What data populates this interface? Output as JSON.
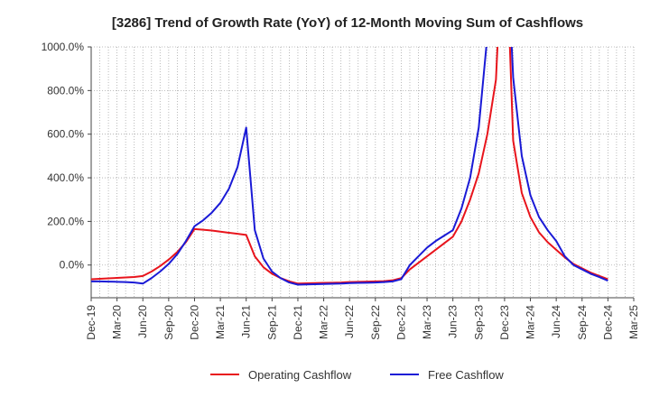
{
  "chart_data": {
    "type": "line",
    "title": "[3286]  Trend of Growth Rate (YoY) of 12-Month Moving Sum of Cashflows",
    "xlabel": "",
    "ylabel": "",
    "ylim": [
      -150,
      1000
    ],
    "y_ticks": [
      0,
      200,
      400,
      600,
      800,
      1000
    ],
    "y_tick_labels": [
      "0.0%",
      "200.0%",
      "400.0%",
      "600.0%",
      "800.0%",
      "1000.0%"
    ],
    "x_tick_labels": [
      "Dec-19",
      "Mar-20",
      "Jun-20",
      "Sep-20",
      "Dec-20",
      "Mar-21",
      "Jun-21",
      "Sep-21",
      "Dec-21",
      "Mar-22",
      "Jun-22",
      "Sep-22",
      "Dec-22",
      "Mar-23",
      "Jun-23",
      "Sep-23",
      "Dec-23",
      "Mar-24",
      "Jun-24",
      "Sep-24",
      "Dec-24",
      "Mar-25"
    ],
    "grid": true,
    "legend_position": "bottom",
    "x": [
      "Dec-19",
      "Jan-20",
      "Feb-20",
      "Mar-20",
      "Apr-20",
      "May-20",
      "Jun-20",
      "Jul-20",
      "Aug-20",
      "Sep-20",
      "Oct-20",
      "Nov-20",
      "Dec-20",
      "Jan-21",
      "Feb-21",
      "Mar-21",
      "Apr-21",
      "May-21",
      "Jun-21",
      "Jul-21",
      "Aug-21",
      "Sep-21",
      "Oct-21",
      "Nov-21",
      "Dec-21",
      "Jan-22",
      "Feb-22",
      "Mar-22",
      "Apr-22",
      "May-22",
      "Jun-22",
      "Jul-22",
      "Aug-22",
      "Sep-22",
      "Oct-22",
      "Nov-22",
      "Dec-22",
      "Jan-23",
      "Feb-23",
      "Mar-23",
      "Apr-23",
      "May-23",
      "Jun-23",
      "Jul-23",
      "Aug-23",
      "Sep-23",
      "Oct-23",
      "Nov-23",
      "Dec-23",
      "Jan-24",
      "Feb-24",
      "Mar-24",
      "Apr-24",
      "May-24",
      "Jun-24",
      "Jul-24",
      "Aug-24",
      "Sep-24",
      "Oct-24",
      "Nov-24",
      "Dec-24"
    ],
    "series": [
      {
        "name": "Operating Cashflow",
        "color": "#e8141c",
        "values": [
          -65,
          -63,
          -61,
          -59,
          -57,
          -55,
          -50,
          -30,
          -5,
          25,
          60,
          105,
          165,
          162,
          158,
          153,
          148,
          143,
          138,
          40,
          -10,
          -40,
          -60,
          -75,
          -85,
          -84,
          -83,
          -82,
          -81,
          -80,
          -78,
          -77,
          -76,
          -75,
          -74,
          -70,
          -60,
          -20,
          10,
          40,
          70,
          100,
          130,
          200,
          300,
          420,
          600,
          850,
          1700,
          570,
          330,
          220,
          150,
          105,
          70,
          35,
          5,
          -15,
          -35,
          -50,
          -65
        ]
      },
      {
        "name": "Free Cashflow",
        "color": "#1a1ad6",
        "values": [
          -75,
          -75,
          -76,
          -77,
          -78,
          -80,
          -85,
          -60,
          -30,
          5,
          50,
          110,
          178,
          205,
          240,
          285,
          350,
          450,
          630,
          160,
          30,
          -30,
          -60,
          -80,
          -90,
          -89,
          -88,
          -87,
          -86,
          -85,
          -83,
          -82,
          -81,
          -80,
          -78,
          -75,
          -65,
          0,
          40,
          80,
          110,
          135,
          160,
          260,
          400,
          630,
          1050,
          1700,
          1700,
          860,
          500,
          320,
          220,
          160,
          110,
          40,
          0,
          -20,
          -40,
          -55,
          -72
        ]
      }
    ]
  }
}
